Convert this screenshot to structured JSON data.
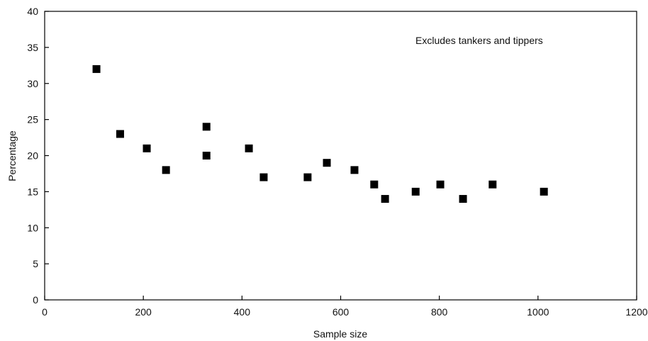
{
  "chart_data": {
    "type": "scatter",
    "xlabel": "Sample size",
    "ylabel": "Percentage",
    "xlim": [
      0,
      1200
    ],
    "ylim": [
      0,
      40
    ],
    "x_ticks": [
      0,
      200,
      400,
      600,
      800,
      1000,
      1200
    ],
    "y_ticks": [
      0,
      5,
      10,
      15,
      20,
      25,
      30,
      35,
      40
    ],
    "grid": false,
    "legend": "none",
    "annotation": "Excludes tankers and tippers",
    "marker": "square",
    "marker_color": "#000000",
    "points": [
      {
        "x": 105,
        "y": 32
      },
      {
        "x": 153,
        "y": 23
      },
      {
        "x": 207,
        "y": 21
      },
      {
        "x": 246,
        "y": 18
      },
      {
        "x": 328,
        "y": 24
      },
      {
        "x": 328,
        "y": 20
      },
      {
        "x": 414,
        "y": 21
      },
      {
        "x": 444,
        "y": 17
      },
      {
        "x": 533,
        "y": 17
      },
      {
        "x": 572,
        "y": 19
      },
      {
        "x": 628,
        "y": 18
      },
      {
        "x": 668,
        "y": 16
      },
      {
        "x": 690,
        "y": 14
      },
      {
        "x": 752,
        "y": 15
      },
      {
        "x": 802,
        "y": 16
      },
      {
        "x": 848,
        "y": 14
      },
      {
        "x": 908,
        "y": 16
      },
      {
        "x": 1012,
        "y": 15
      }
    ]
  }
}
